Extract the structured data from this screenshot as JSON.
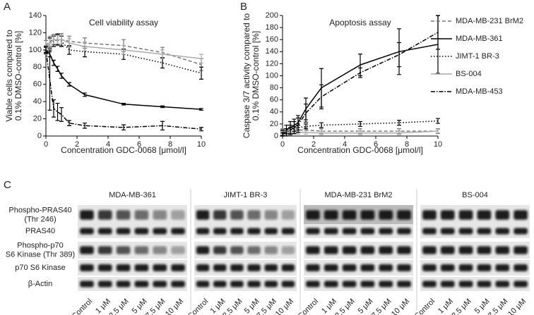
{
  "chart_data": [
    {
      "type": "line",
      "panel": "A",
      "title": "Cell viability assay",
      "xlabel": "Concentration GDC-0068 [μmol/l]",
      "ylabel": [
        "Viable cells compared to",
        "0.1% DMSO-control [%]"
      ],
      "x": [
        0,
        0.25,
        0.5,
        0.75,
        1,
        1.5,
        2.5,
        5,
        7.5,
        10
      ],
      "xlim": [
        0,
        10
      ],
      "xticks": [
        0,
        2,
        4,
        6,
        8,
        10
      ],
      "ylim": [
        0,
        140
      ],
      "yticks": [
        0,
        20,
        40,
        60,
        80,
        100,
        120,
        140
      ],
      "series": [
        {
          "color": "#777777",
          "dash": "dashed",
          "values": [
            105,
            110,
            112,
            112,
            112,
            110,
            108,
            105,
            97,
            83
          ],
          "errors": [
            6,
            6,
            6,
            7,
            7,
            6,
            6,
            7,
            6,
            7
          ]
        },
        {
          "color": "#000000",
          "dash": "solid",
          "values": [
            100,
            95,
            85,
            78,
            70,
            60,
            48,
            37,
            34,
            31
          ],
          "errors": [
            3,
            3,
            3,
            3,
            3,
            2,
            2,
            1,
            1,
            1
          ]
        },
        {
          "color": "#000000",
          "dash": "dotted",
          "values": [
            100,
            108,
            110,
            112,
            110,
            100,
            98,
            95,
            85,
            73
          ],
          "errors": [
            5,
            6,
            6,
            6,
            6,
            5,
            6,
            6,
            6,
            7
          ]
        },
        {
          "color": "#aaaaaa",
          "dash": "solid",
          "values": [
            100,
            108,
            112,
            112,
            112,
            108,
            104,
            100,
            95,
            90
          ],
          "errors": [
            5,
            5,
            5,
            5,
            5,
            5,
            5,
            5,
            5,
            5
          ]
        },
        {
          "color": "#000000",
          "dash": "dashdot",
          "values": [
            100,
            65,
            32,
            28,
            25,
            15,
            12,
            10,
            12,
            8
          ],
          "errors": [
            4,
            35,
            10,
            10,
            8,
            3,
            3,
            3,
            5,
            2
          ]
        }
      ]
    },
    {
      "type": "line",
      "panel": "B",
      "title": "Apoptosis assay",
      "xlabel": "Concentration GDC-0068 [μmol/l]",
      "ylabel": [
        "Caspase 3/7 activity compared to",
        "0.1% DMSO-control [%]"
      ],
      "x": [
        0,
        0.25,
        0.5,
        0.75,
        1,
        1.5,
        2.5,
        5,
        7.5,
        10
      ],
      "xlim": [
        0,
        10
      ],
      "xticks": [
        0,
        2,
        4,
        6,
        8,
        10
      ],
      "ylim": [
        0,
        200
      ],
      "yticks": [
        0,
        20,
        40,
        60,
        80,
        100,
        120,
        140,
        160,
        180,
        200
      ],
      "legend": "right",
      "series": [
        {
          "name": "MDA-MB-231 BrM2",
          "color": "#777777",
          "dash": "dashed",
          "values": [
            8,
            8,
            10,
            10,
            10,
            10,
            8,
            8,
            8,
            8
          ],
          "errors": [
            4,
            4,
            4,
            4,
            4,
            4,
            4,
            4,
            4,
            4
          ]
        },
        {
          "name": "MDA-MB-361",
          "color": "#000000",
          "dash": "solid",
          "values": [
            5,
            10,
            14,
            18,
            22,
            45,
            80,
            118,
            140,
            152
          ],
          "errors": [
            5,
            8,
            10,
            10,
            12,
            18,
            32,
            18,
            38,
            48
          ]
        },
        {
          "name": "JIMT-1 BR-3",
          "color": "#000000",
          "dash": "dotted",
          "values": [
            5,
            8,
            10,
            12,
            14,
            16,
            18,
            20,
            22,
            25
          ],
          "errors": [
            4,
            4,
            4,
            4,
            4,
            4,
            4,
            4,
            4,
            4
          ]
        },
        {
          "name": "BS-004",
          "color": "#aaaaaa",
          "dash": "solid",
          "values": [
            5,
            5,
            6,
            6,
            6,
            6,
            5,
            5,
            5,
            8
          ],
          "errors": [
            3,
            3,
            3,
            3,
            3,
            3,
            3,
            3,
            3,
            3
          ]
        },
        {
          "name": "MDA-MB-453",
          "color": "#000000",
          "dash": "dashdot",
          "values": [
            3,
            6,
            10,
            14,
            18,
            38,
            65,
            105,
            135,
            172
          ],
          "errors": [
            3,
            6,
            8,
            10,
            12,
            15,
            20,
            8,
            20,
            28
          ]
        }
      ]
    }
  ],
  "blot": {
    "panel": "C",
    "groups": [
      "MDA-MB-361",
      "JIMT-1 BR-3",
      "MDA-MB-231 BrM2",
      "BS-004"
    ],
    "rows": [
      [
        "Phospho-PRAS40",
        "(Thr 246)"
      ],
      [
        "PRAS40"
      ],
      [
        "Phospho-p70",
        "S6 Kinase (Thr 389)"
      ],
      [
        "p70 S6 Kinase"
      ],
      [
        "β-Actin"
      ]
    ],
    "lanes": [
      "Control",
      "1 μM",
      "2.5 μM",
      "5 μM",
      "7.5 μM",
      "10 μM"
    ]
  }
}
